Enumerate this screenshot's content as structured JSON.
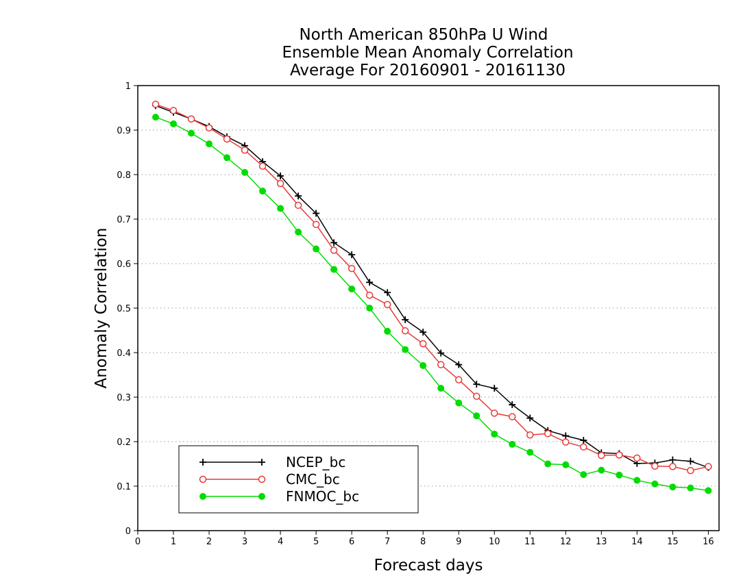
{
  "chart_data": {
    "type": "line",
    "title": [
      "North American 850hPa U Wind",
      "Ensemble Mean Anomaly Correlation",
      "Average For 20160901 - 20161130"
    ],
    "xlabel": "Forecast days",
    "ylabel": "Anomaly Correlation",
    "xlim": [
      0,
      16.3
    ],
    "ylim": [
      0,
      1
    ],
    "xticks": [
      "0",
      "1",
      "2",
      "3",
      "4",
      "5",
      "6",
      "7",
      "8",
      "9",
      "10",
      "11",
      "12",
      "13",
      "14",
      "15",
      "16"
    ],
    "yticks": [
      "0",
      "0.1",
      "0.2",
      "0.3",
      "0.4",
      "0.5",
      "0.6",
      "0.7",
      "0.8",
      "0.9",
      "1"
    ],
    "grid": "horizontal dotted",
    "legend_position": "bottom-left",
    "x": [
      0.5,
      1,
      1.5,
      2,
      2.5,
      3,
      3.5,
      4,
      4.5,
      5,
      5.5,
      6,
      6.5,
      7,
      7.5,
      8,
      8.5,
      9,
      9.5,
      10,
      10.5,
      11,
      11.5,
      12,
      12.5,
      13,
      13.5,
      14,
      14.5,
      15,
      15.5,
      16
    ],
    "series": [
      {
        "name": "NCEP_bc",
        "color": "#000000",
        "marker": "plus",
        "values": [
          0.955,
          0.94,
          0.925,
          0.908,
          0.885,
          0.865,
          0.829,
          0.797,
          0.752,
          0.713,
          0.647,
          0.62,
          0.558,
          0.535,
          0.474,
          0.446,
          0.399,
          0.373,
          0.329,
          0.32,
          0.283,
          0.253,
          0.225,
          0.213,
          0.203,
          0.175,
          0.173,
          0.151,
          0.152,
          0.159,
          0.156,
          0.142
        ]
      },
      {
        "name": "CMC_bc",
        "color": "#e83838",
        "marker": "open-circle",
        "values": [
          0.958,
          0.944,
          0.925,
          0.905,
          0.88,
          0.855,
          0.819,
          0.78,
          0.731,
          0.688,
          0.63,
          0.589,
          0.529,
          0.508,
          0.449,
          0.42,
          0.373,
          0.339,
          0.302,
          0.264,
          0.256,
          0.215,
          0.218,
          0.199,
          0.188,
          0.169,
          0.17,
          0.163,
          0.145,
          0.144,
          0.135,
          0.144
        ]
      },
      {
        "name": "FNMOC_bc",
        "color": "#00dc00",
        "marker": "filled-circle",
        "values": [
          0.929,
          0.914,
          0.893,
          0.869,
          0.838,
          0.805,
          0.763,
          0.724,
          0.671,
          0.633,
          0.587,
          0.543,
          0.5,
          0.448,
          0.407,
          0.371,
          0.32,
          0.287,
          0.258,
          0.217,
          0.194,
          0.176,
          0.15,
          0.148,
          0.126,
          0.136,
          0.125,
          0.113,
          0.105,
          0.098,
          0.096,
          0.09
        ]
      }
    ]
  }
}
